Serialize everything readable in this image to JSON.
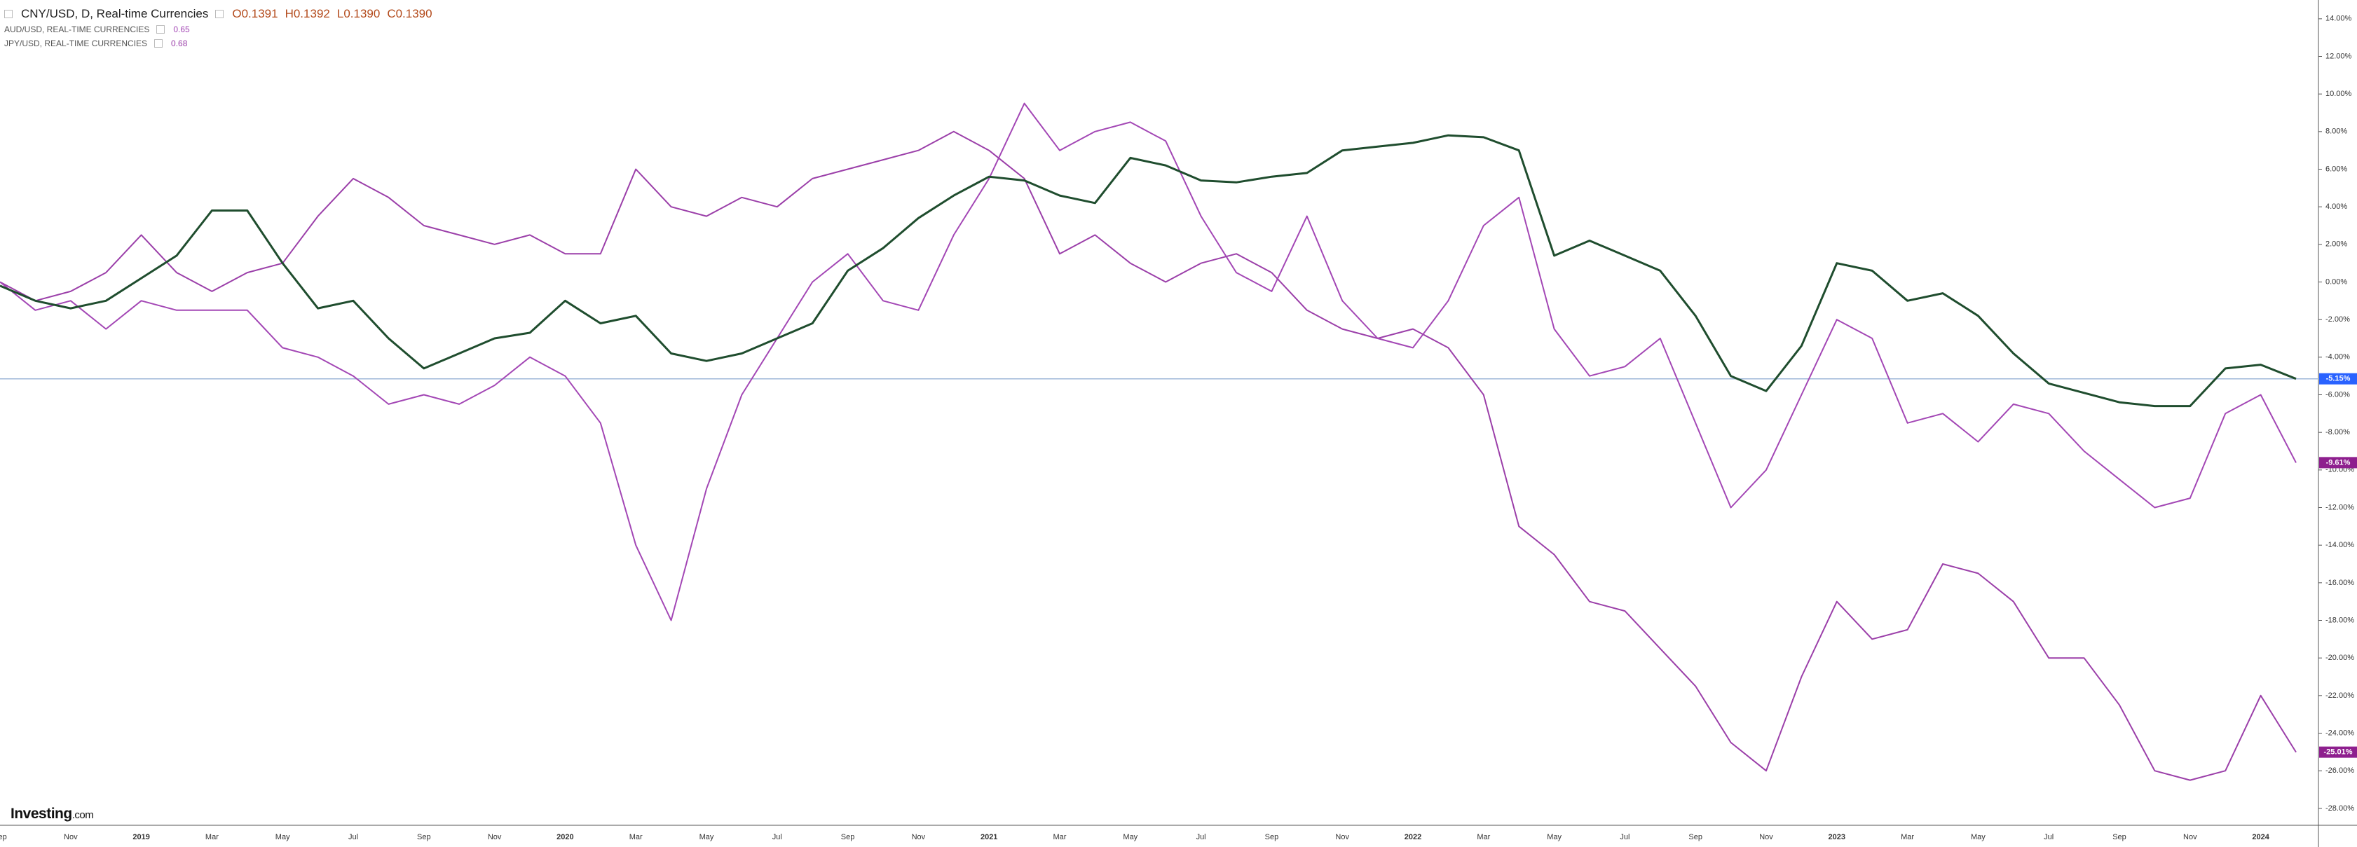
{
  "header": {
    "ohlc": [
      "O0.1391",
      "H0.1392",
      "L0.1390",
      "C0.1390"
    ]
  },
  "logo": {
    "brand": "Investing",
    "suffix": ".com"
  },
  "chart_data": {
    "type": "line",
    "categories": [
      "Sep",
      null,
      "Nov",
      null,
      "2019",
      null,
      "Mar",
      null,
      "May",
      null,
      "Jul",
      null,
      "Sep",
      null,
      "Nov",
      null,
      "2020",
      null,
      "Mar",
      null,
      "May",
      null,
      "Jul",
      null,
      "Sep",
      null,
      "Nov",
      null,
      "2021",
      null,
      "Mar",
      null,
      "May",
      null,
      "Jul",
      null,
      "Sep",
      null,
      "Nov",
      null,
      "2022",
      null,
      "Mar",
      null,
      "May",
      null,
      "Jul",
      null,
      "Sep",
      null,
      "Nov",
      null,
      "2023",
      null,
      "Mar",
      null,
      "May",
      null,
      "Jul",
      null,
      "Sep",
      null,
      "Nov",
      null,
      "2024",
      null
    ],
    "series": [
      {
        "name": "CNY/USD, D, Real-time Currencies",
        "color": "#1f4d2e",
        "last_value_label": "-5.15%",
        "label_color": "#2962ff",
        "values": [
          -0.2,
          -1,
          -1.4,
          -1,
          0.2,
          1.4,
          3.8,
          3.8,
          1,
          -1.4,
          -1,
          -3,
          -4.6,
          -3.8,
          -3,
          -2.7,
          -1,
          -2.2,
          -1.8,
          -3.8,
          -4.2,
          -3.8,
          -3,
          -2.2,
          0.6,
          1.8,
          3.4,
          4.6,
          5.6,
          5.4,
          4.6,
          4.2,
          6.6,
          6.2,
          5.4,
          5.3,
          5.6,
          5.8,
          7,
          7.2,
          7.4,
          7.8,
          7.7,
          7,
          1.4,
          2.2,
          1.4,
          0.6,
          -1.8,
          -5,
          -5.8,
          -3.4,
          1,
          0.6,
          -1,
          -0.6,
          -1.8,
          -3.8,
          -5.4,
          -5.9,
          -6.4,
          -6.6,
          -6.6,
          -4.6,
          -4.4,
          -5.15
        ]
      },
      {
        "name": "AUD/USD, REAL-TIME CURRENCIES",
        "price": 0.65,
        "color": "#a347b5",
        "last_value_label": "-9.61%",
        "label_color": "#8e1f8e",
        "values": [
          0,
          -1.5,
          -1,
          -2.5,
          -1,
          -1.5,
          -1.5,
          -1.5,
          -3.5,
          -4,
          -5,
          -6.5,
          -6,
          -6.5,
          -5.5,
          -4,
          -5,
          -7.5,
          -14,
          -18,
          -11,
          -6,
          -3,
          0,
          1.5,
          -1,
          -1.5,
          2.5,
          5.5,
          9.5,
          7,
          8,
          8.5,
          7.5,
          3.5,
          0.5,
          -0.5,
          3.5,
          -1,
          -3,
          -3.5,
          -1,
          3,
          4.5,
          -2.5,
          -5,
          -4.5,
          -3,
          -7.5,
          -12,
          -10,
          -6,
          -2,
          -3,
          -7.5,
          -7,
          -8.5,
          -6.5,
          -7,
          -9,
          -10.5,
          -12,
          -11.5,
          -7,
          -6,
          -9.61
        ]
      },
      {
        "name": "JPY/USD, REAL-TIME CURRENCIES",
        "price": 0.68,
        "color": "#9b3fa9",
        "last_value_label": "-25.01%",
        "label_color": "#8e1f8e",
        "values": [
          0,
          -1,
          -0.5,
          0.5,
          2.5,
          0.5,
          -0.5,
          0.5,
          1,
          3.5,
          5.5,
          4.5,
          3,
          2.5,
          2,
          2.5,
          1.5,
          1.5,
          6,
          4,
          3.5,
          4.5,
          4,
          5.5,
          6,
          6.5,
          7,
          8,
          7,
          5.5,
          1.5,
          2.5,
          1,
          0,
          1,
          1.5,
          0.5,
          -1.5,
          -2.5,
          -3,
          -2.5,
          -3.5,
          -6,
          -13,
          -14.5,
          -17,
          -17.5,
          -19.5,
          -21.5,
          -24.5,
          -26,
          -21,
          -17,
          -19,
          -18.5,
          -15,
          -15.5,
          -17,
          -20,
          -20,
          -22.5,
          -26,
          -26.5,
          -26,
          -22,
          -25.01
        ]
      }
    ],
    "ylim": [
      -28.9,
      15.0
    ],
    "yticks": [
      {
        "value": 14,
        "label": "14.00%"
      },
      {
        "value": 12,
        "label": "12.00%"
      },
      {
        "value": 10,
        "label": "10.00%"
      },
      {
        "value": 8,
        "label": "8.00%"
      },
      {
        "value": 6,
        "label": "6.00%"
      },
      {
        "value": 4,
        "label": "4.00%"
      },
      {
        "value": 2,
        "label": "2.00%"
      },
      {
        "value": 0,
        "label": "0.00%"
      },
      {
        "value": -2,
        "label": "-2.00%"
      },
      {
        "value": -4,
        "label": "-4.00%"
      },
      {
        "value": -6,
        "label": "-6.00%"
      },
      {
        "value": -8,
        "label": "-8.00%"
      },
      {
        "value": -10,
        "label": "-10.00%"
      },
      {
        "value": -12,
        "label": "-12.00%"
      },
      {
        "value": -14,
        "label": "-14.00%"
      },
      {
        "value": -16,
        "label": "-16.00%"
      },
      {
        "value": -18,
        "label": "-18.00%"
      },
      {
        "value": -20,
        "label": "-20.00%"
      },
      {
        "value": -22,
        "label": "-22.00%"
      },
      {
        "value": -24,
        "label": "-24.00%"
      },
      {
        "value": -26,
        "label": "-26.00%"
      },
      {
        "value": -28,
        "label": "-28.00%"
      }
    ],
    "grid": false
  }
}
